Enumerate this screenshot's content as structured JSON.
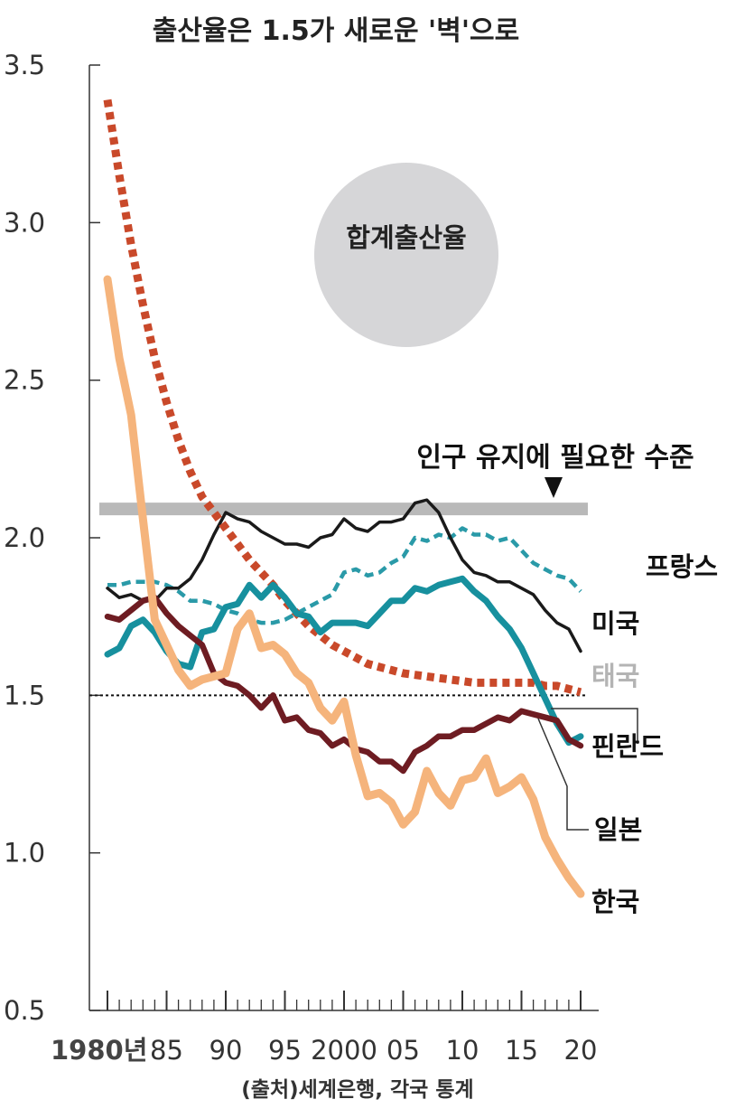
{
  "chart_data": {
    "type": "line",
    "title": "출산율은 1.5가 새로운 '벽'으로",
    "ylabel": "합계출산율",
    "ylim": [
      0.5,
      3.5
    ],
    "yticks": [
      "3.5",
      "3.0",
      "2.5",
      "2.0",
      "1.5",
      "1.0",
      "0.5"
    ],
    "ytick_values": [
      3.5,
      3.0,
      2.5,
      2.0,
      1.5,
      1.0,
      0.5
    ],
    "xlim": [
      1980,
      2020
    ],
    "xticks": [
      "1980년",
      "85",
      "90",
      "95",
      "2000",
      "05",
      "10",
      "15",
      "20"
    ],
    "xtick_values": [
      1980,
      1985,
      1990,
      1995,
      2000,
      2005,
      2010,
      2015,
      2020
    ],
    "replacement_label": "인구 유지에 필요한 수준",
    "replacement_level": 2.1,
    "reference_line": 1.5,
    "source": "(출처)세계은행, 각국 통계",
    "series": [
      {
        "name": "프랑스",
        "color": "#2a9aa8",
        "style": "dashed",
        "x": [
          1980,
          1981,
          1982,
          1983,
          1984,
          1985,
          1986,
          1987,
          1988,
          1989,
          1990,
          1991,
          1992,
          1993,
          1994,
          1995,
          1996,
          1997,
          1998,
          1999,
          2000,
          2001,
          2002,
          2003,
          2004,
          2005,
          2006,
          2007,
          2008,
          2009,
          2010,
          2011,
          2012,
          2013,
          2014,
          2015,
          2016,
          2017,
          2018,
          2019,
          2020
        ],
        "y": [
          1.85,
          1.85,
          1.86,
          1.86,
          1.86,
          1.85,
          1.83,
          1.8,
          1.8,
          1.79,
          1.77,
          1.76,
          1.74,
          1.73,
          1.73,
          1.74,
          1.76,
          1.78,
          1.8,
          1.82,
          1.89,
          1.9,
          1.88,
          1.89,
          1.92,
          1.94,
          2.0,
          1.99,
          2.01,
          2.0,
          2.03,
          2.01,
          2.01,
          1.99,
          2.0,
          1.96,
          1.92,
          1.9,
          1.88,
          1.87,
          1.83
        ]
      },
      {
        "name": "미국",
        "color": "#1a1a1a",
        "style": "solid",
        "x": [
          1980,
          1981,
          1982,
          1983,
          1984,
          1985,
          1986,
          1987,
          1988,
          1989,
          1990,
          1991,
          1992,
          1993,
          1994,
          1995,
          1996,
          1997,
          1998,
          1999,
          2000,
          2001,
          2002,
          2003,
          2004,
          2005,
          2006,
          2007,
          2008,
          2009,
          2010,
          2011,
          2012,
          2013,
          2014,
          2015,
          2016,
          2017,
          2018,
          2019,
          2020
        ],
        "y": [
          1.84,
          1.81,
          1.82,
          1.8,
          1.8,
          1.84,
          1.84,
          1.87,
          1.93,
          2.01,
          2.08,
          2.06,
          2.05,
          2.02,
          2.0,
          1.98,
          1.98,
          1.97,
          2.0,
          2.01,
          2.06,
          2.03,
          2.02,
          2.05,
          2.05,
          2.06,
          2.11,
          2.12,
          2.08,
          2.0,
          1.93,
          1.89,
          1.88,
          1.86,
          1.86,
          1.84,
          1.82,
          1.77,
          1.73,
          1.71,
          1.64
        ]
      },
      {
        "name": "태국",
        "color": "#c9492a",
        "style": "dotted",
        "x": [
          1980,
          1981,
          1982,
          1983,
          1984,
          1985,
          1986,
          1987,
          1988,
          1989,
          1990,
          1991,
          1992,
          1993,
          1994,
          1995,
          1996,
          1997,
          1998,
          1999,
          2000,
          2001,
          2002,
          2003,
          2004,
          2005,
          2006,
          2007,
          2008,
          2009,
          2010,
          2011,
          2012,
          2013,
          2014,
          2015,
          2016,
          2017,
          2018,
          2019,
          2020
        ],
        "y": [
          3.39,
          3.15,
          2.93,
          2.74,
          2.57,
          2.43,
          2.31,
          2.21,
          2.13,
          2.08,
          2.03,
          1.98,
          1.93,
          1.89,
          1.85,
          1.8,
          1.76,
          1.72,
          1.69,
          1.66,
          1.64,
          1.62,
          1.6,
          1.59,
          1.58,
          1.57,
          1.565,
          1.56,
          1.555,
          1.55,
          1.545,
          1.54,
          1.54,
          1.54,
          1.54,
          1.54,
          1.54,
          1.53,
          1.53,
          1.52,
          1.51
        ]
      },
      {
        "name": "핀란드",
        "color": "#17909e",
        "style": "solid",
        "x": [
          1980,
          1981,
          1982,
          1983,
          1984,
          1985,
          1986,
          1987,
          1988,
          1989,
          1990,
          1991,
          1992,
          1993,
          1994,
          1995,
          1996,
          1997,
          1998,
          1999,
          2000,
          2001,
          2002,
          2003,
          2004,
          2005,
          2006,
          2007,
          2008,
          2009,
          2010,
          2011,
          2012,
          2013,
          2014,
          2015,
          2016,
          2017,
          2018,
          2019,
          2020
        ],
        "y": [
          1.63,
          1.65,
          1.72,
          1.74,
          1.7,
          1.64,
          1.6,
          1.59,
          1.7,
          1.71,
          1.78,
          1.79,
          1.85,
          1.81,
          1.85,
          1.81,
          1.76,
          1.75,
          1.7,
          1.73,
          1.73,
          1.73,
          1.72,
          1.76,
          1.8,
          1.8,
          1.84,
          1.83,
          1.85,
          1.86,
          1.87,
          1.83,
          1.8,
          1.75,
          1.71,
          1.65,
          1.57,
          1.49,
          1.41,
          1.35,
          1.37
        ]
      },
      {
        "name": "일본",
        "color": "#6e1c22",
        "style": "solid",
        "x": [
          1980,
          1981,
          1982,
          1983,
          1984,
          1985,
          1986,
          1987,
          1988,
          1989,
          1990,
          1991,
          1992,
          1993,
          1994,
          1995,
          1996,
          1997,
          1998,
          1999,
          2000,
          2001,
          2002,
          2003,
          2004,
          2005,
          2006,
          2007,
          2008,
          2009,
          2010,
          2011,
          2012,
          2013,
          2014,
          2015,
          2016,
          2017,
          2018,
          2019,
          2020
        ],
        "y": [
          1.75,
          1.74,
          1.77,
          1.8,
          1.81,
          1.76,
          1.72,
          1.69,
          1.66,
          1.57,
          1.54,
          1.53,
          1.5,
          1.46,
          1.5,
          1.42,
          1.43,
          1.39,
          1.38,
          1.34,
          1.36,
          1.33,
          1.32,
          1.29,
          1.29,
          1.26,
          1.32,
          1.34,
          1.37,
          1.37,
          1.39,
          1.39,
          1.41,
          1.43,
          1.42,
          1.45,
          1.44,
          1.43,
          1.42,
          1.36,
          1.34
        ]
      },
      {
        "name": "한국",
        "color": "#f5b47c",
        "style": "solid",
        "x": [
          1980,
          1981,
          1982,
          1983,
          1984,
          1985,
          1986,
          1987,
          1988,
          1989,
          1990,
          1991,
          1992,
          1993,
          1994,
          1995,
          1996,
          1997,
          1998,
          1999,
          2000,
          2001,
          2002,
          2003,
          2004,
          2005,
          2006,
          2007,
          2008,
          2009,
          2010,
          2011,
          2012,
          2013,
          2014,
          2015,
          2016,
          2017,
          2018,
          2019,
          2020
        ],
        "y": [
          2.82,
          2.57,
          2.39,
          2.06,
          1.74,
          1.66,
          1.58,
          1.53,
          1.55,
          1.56,
          1.57,
          1.71,
          1.76,
          1.65,
          1.66,
          1.63,
          1.57,
          1.54,
          1.46,
          1.42,
          1.48,
          1.31,
          1.18,
          1.19,
          1.16,
          1.09,
          1.13,
          1.26,
          1.19,
          1.15,
          1.23,
          1.24,
          1.3,
          1.19,
          1.21,
          1.24,
          1.17,
          1.05,
          0.98,
          0.92,
          0.87
        ]
      }
    ]
  }
}
